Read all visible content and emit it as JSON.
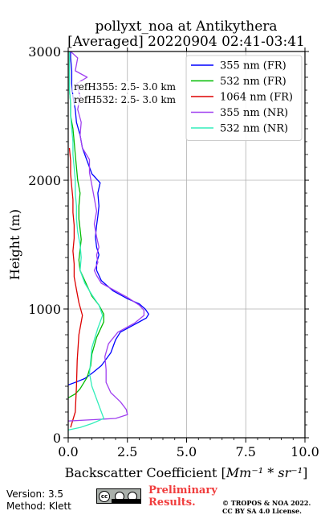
{
  "chart_data": {
    "type": "line",
    "title_line1": "pollyxt_noa at Antikythera",
    "title_line2": "[Averaged] 20220904 02:41-03:41",
    "xlabel": "Backscatter Coefficient [",
    "xlabel_unit": "Mm⁻¹ * sr⁻¹",
    "xlabel_end": "]",
    "ylabel": "Height (m)",
    "xlim": [
      0,
      10
    ],
    "ylim": [
      0,
      3000
    ],
    "x_ticks": [
      "0.0",
      "2.5",
      "5.0",
      "7.5",
      "10.0"
    ],
    "x_tick_values": [
      0,
      2.5,
      5,
      7.5,
      10
    ],
    "y_ticks": [
      "0",
      "1000",
      "2000",
      "3000"
    ],
    "y_tick_values": [
      0,
      1000,
      2000,
      3000
    ],
    "grid": true,
    "legend_position": "top-right",
    "annotations": [
      "refH355:  2.5- 3.0 km",
      "refH532:  2.5- 3.0 km"
    ],
    "series": [
      {
        "name": "355 nm (FR)",
        "color": "#0000ff",
        "points": [
          [
            0,
            410
          ],
          [
            0.3,
            430
          ],
          [
            0.7,
            460
          ],
          [
            1.0,
            500
          ],
          [
            1.4,
            560
          ],
          [
            1.8,
            660
          ],
          [
            2.0,
            760
          ],
          [
            2.2,
            820
          ],
          [
            2.6,
            860
          ],
          [
            3.0,
            900
          ],
          [
            3.3,
            930
          ],
          [
            3.4,
            960
          ],
          [
            3.25,
            1000
          ],
          [
            3.0,
            1040
          ],
          [
            2.5,
            1080
          ],
          [
            1.9,
            1140
          ],
          [
            1.4,
            1220
          ],
          [
            1.2,
            1300
          ],
          [
            1.2,
            1360
          ],
          [
            1.3,
            1420
          ],
          [
            1.2,
            1480
          ],
          [
            1.15,
            1560
          ],
          [
            1.2,
            1650
          ],
          [
            1.25,
            1720
          ],
          [
            1.3,
            1800
          ],
          [
            1.25,
            1900
          ],
          [
            1.35,
            1980
          ],
          [
            1.0,
            2050
          ],
          [
            0.8,
            2150
          ],
          [
            0.6,
            2250
          ],
          [
            0.5,
            2350
          ],
          [
            0.35,
            2450
          ],
          [
            0.3,
            2550
          ],
          [
            0.2,
            2650
          ],
          [
            0.15,
            2750
          ],
          [
            0.15,
            2850
          ],
          [
            0.1,
            2950
          ],
          [
            0.1,
            3000
          ]
        ]
      },
      {
        "name": "532 nm (FR)",
        "color": "#00bb00",
        "points": [
          [
            0,
            310
          ],
          [
            0.3,
            340
          ],
          [
            0.5,
            380
          ],
          [
            0.8,
            470
          ],
          [
            0.95,
            560
          ],
          [
            1.0,
            650
          ],
          [
            1.2,
            780
          ],
          [
            1.5,
            900
          ],
          [
            1.5,
            960
          ],
          [
            1.3,
            1030
          ],
          [
            1.0,
            1100
          ],
          [
            0.75,
            1200
          ],
          [
            0.5,
            1300
          ],
          [
            0.45,
            1380
          ],
          [
            0.5,
            1460
          ],
          [
            0.55,
            1540
          ],
          [
            0.5,
            1620
          ],
          [
            0.45,
            1700
          ],
          [
            0.45,
            1800
          ],
          [
            0.5,
            1900
          ],
          [
            0.4,
            2000
          ],
          [
            0.35,
            2100
          ],
          [
            0.3,
            2200
          ],
          [
            0.25,
            2300
          ],
          [
            0.2,
            2400
          ],
          [
            0.1,
            2500
          ],
          [
            0.1,
            2600
          ],
          [
            0.05,
            2700
          ],
          [
            0.05,
            2800
          ],
          [
            0.05,
            3000
          ]
        ]
      },
      {
        "name": "1064 nm (FR)",
        "color": "#dd0000",
        "points": [
          [
            0.1,
            80
          ],
          [
            0.3,
            200
          ],
          [
            0.35,
            400
          ],
          [
            0.38,
            600
          ],
          [
            0.45,
            800
          ],
          [
            0.6,
            950
          ],
          [
            0.45,
            1050
          ],
          [
            0.35,
            1150
          ],
          [
            0.25,
            1250
          ],
          [
            0.25,
            1350
          ],
          [
            0.2,
            1450
          ],
          [
            0.25,
            1550
          ],
          [
            0.25,
            1650
          ],
          [
            0.2,
            1750
          ],
          [
            0.2,
            1850
          ],
          [
            0.15,
            1950
          ],
          [
            0.1,
            2050
          ],
          [
            0.1,
            2150
          ],
          [
            0.05,
            2250
          ]
        ]
      },
      {
        "name": "355 nm (NR)",
        "color": "#a040f0",
        "points": [
          [
            0.0,
            130
          ],
          [
            1.0,
            140
          ],
          [
            2.0,
            150
          ],
          [
            2.5,
            180
          ],
          [
            2.45,
            220
          ],
          [
            2.2,
            280
          ],
          [
            1.8,
            350
          ],
          [
            1.6,
            430
          ],
          [
            1.6,
            530
          ],
          [
            1.55,
            630
          ],
          [
            1.7,
            730
          ],
          [
            2.1,
            820
          ],
          [
            2.8,
            890
          ],
          [
            3.2,
            950
          ],
          [
            3.2,
            990
          ],
          [
            3.0,
            1030
          ],
          [
            2.5,
            1090
          ],
          [
            1.9,
            1150
          ],
          [
            1.4,
            1200
          ],
          [
            1.2,
            1260
          ],
          [
            1.1,
            1300
          ],
          [
            1.25,
            1360
          ],
          [
            1.2,
            1420
          ],
          [
            1.3,
            1480
          ],
          [
            1.2,
            1560
          ],
          [
            1.1,
            1660
          ],
          [
            1.2,
            1760
          ],
          [
            1.1,
            1860
          ],
          [
            1.0,
            1960
          ],
          [
            0.9,
            2060
          ],
          [
            0.9,
            2160
          ],
          [
            0.6,
            2250
          ],
          [
            0.5,
            2350
          ],
          [
            0.55,
            2450
          ],
          [
            0.4,
            2550
          ],
          [
            0.5,
            2650
          ],
          [
            0.35,
            2750
          ],
          [
            0.8,
            2800
          ],
          [
            0.3,
            2850
          ],
          [
            0.4,
            2950
          ],
          [
            0.1,
            3000
          ]
        ]
      },
      {
        "name": "532 nm (NR)",
        "color": "#33eebb",
        "points": [
          [
            0.0,
            60
          ],
          [
            0.5,
            80
          ],
          [
            1.0,
            110
          ],
          [
            1.5,
            150
          ],
          [
            1.4,
            200
          ],
          [
            1.2,
            300
          ],
          [
            1.0,
            400
          ],
          [
            0.9,
            500
          ],
          [
            0.95,
            600
          ],
          [
            1.0,
            700
          ],
          [
            1.25,
            850
          ],
          [
            1.45,
            950
          ],
          [
            1.3,
            1030
          ],
          [
            1.0,
            1110
          ],
          [
            0.7,
            1200
          ],
          [
            0.5,
            1300
          ],
          [
            0.55,
            1400
          ],
          [
            0.5,
            1500
          ],
          [
            0.4,
            1600
          ],
          [
            0.35,
            1700
          ],
          [
            0.35,
            1800
          ],
          [
            0.3,
            1900
          ],
          [
            0.3,
            2000
          ],
          [
            0.25,
            2100
          ],
          [
            0.2,
            2200
          ],
          [
            0.2,
            2300
          ],
          [
            0.15,
            2400
          ],
          [
            0.1,
            2500
          ],
          [
            0.1,
            2600
          ],
          [
            0.05,
            2700
          ],
          [
            0.05,
            2800
          ],
          [
            0.05,
            3000
          ]
        ]
      }
    ]
  },
  "footer": {
    "version": "Version: 3.5",
    "method": "Method: Klett",
    "preliminary_line1": "Preliminary",
    "preliminary_line2": "Results.",
    "copyright_line1": "© TROPOS & NOA 2022.",
    "copyright_line2": "CC BY SA 4.0 License."
  }
}
